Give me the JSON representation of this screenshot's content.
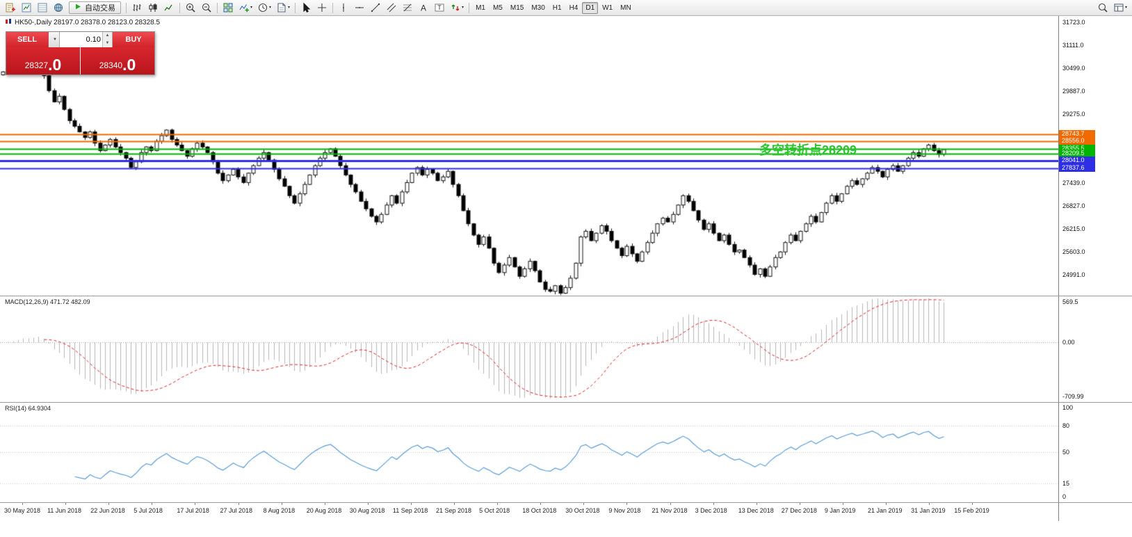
{
  "toolbar": {
    "autotrading_label": "自动交易",
    "timeframes": [
      "M1",
      "M5",
      "M15",
      "M30",
      "H1",
      "H4",
      "D1",
      "W1",
      "MN"
    ],
    "selected_timeframe": "D1",
    "groups": [
      {
        "type": "icons",
        "items": [
          "new-order-icon",
          "market-watch-icon",
          "data-window-icon",
          "navigator-icon"
        ]
      },
      {
        "type": "autotrading"
      },
      {
        "type": "sep"
      },
      {
        "type": "icons",
        "items": [
          "bar-chart-icon",
          "candlestick-icon",
          "line-chart-icon"
        ]
      },
      {
        "type": "sep"
      },
      {
        "type": "icons",
        "items": [
          "zoom-in-icon",
          "zoom-out-icon"
        ]
      },
      {
        "type": "sep"
      },
      {
        "type": "icons",
        "items": [
          "tile-windows-icon"
        ]
      },
      {
        "type": "icons-caret",
        "items": [
          "indicators-icon",
          "periods-icon",
          "templates-icon"
        ]
      },
      {
        "type": "sep"
      },
      {
        "type": "icons",
        "items": [
          "cursor-icon",
          "crosshair-icon"
        ]
      },
      {
        "type": "sep"
      },
      {
        "type": "icons",
        "items": [
          "vertical-line-icon",
          "horizontal-line-icon",
          "trendline-icon",
          "channel-icon",
          "fibonacci-icon",
          "text-icon",
          "label-icon"
        ]
      },
      {
        "type": "icons-caret",
        "items": [
          "arrows-icon"
        ]
      },
      {
        "type": "sep"
      },
      {
        "type": "timeframes"
      },
      {
        "type": "spacer"
      },
      {
        "type": "icons",
        "items": [
          "search-icon"
        ]
      },
      {
        "type": "icons-caret",
        "items": [
          "panels-icon"
        ]
      }
    ]
  },
  "chart": {
    "title_line": "HK50-,Daily 28197.0 28378.0 28123.0 28328.5",
    "annotation": {
      "text": "多空转折点28209",
      "color": "#2dc42d"
    },
    "levels": [
      {
        "price": 28743.7,
        "label": "28743.7",
        "color": "#f06a00",
        "width": 2
      },
      {
        "price": 28556.0,
        "label": "28556.0",
        "color": "#f06a00",
        "width": 2
      },
      {
        "price": 28355.5,
        "label": "28355.5",
        "color": "#00b400",
        "width": 2
      },
      {
        "price": 28209.5,
        "label": "28209.5",
        "color": "#00b400",
        "width": 2
      },
      {
        "price": 28041.0,
        "label": "28041.0",
        "color": "#2e2ee6",
        "width": 3
      },
      {
        "price": 27837.6,
        "label": "27837.6",
        "color": "#2e2ee6",
        "width": 2
      }
    ],
    "axis_ticks": [
      31723.0,
      31111.0,
      30499.0,
      29887.0,
      29275.0,
      27439.0,
      26827.0,
      26215.0,
      25603.0,
      24991.0
    ]
  },
  "trade": {
    "sell_label": "SELL",
    "buy_label": "BUY",
    "volume": "0.10",
    "sell_price": "28327.0",
    "buy_price": "28340.0"
  },
  "macd": {
    "label": "MACD(12,26,9) 471.72 482.09",
    "axis_labels": [
      "569.5",
      "0.00",
      "-709.99"
    ]
  },
  "rsi": {
    "label": "RSI(14) 64.9304",
    "axis_labels": [
      "100",
      "80",
      "50",
      "15",
      "0"
    ],
    "axis_values": [
      100,
      80,
      50,
      15,
      0
    ],
    "levels": [
      80,
      50,
      15
    ]
  },
  "dates": [
    "30 May 2018",
    "11 Jun 2018",
    "22 Jun 2018",
    "5 Jul 2018",
    "17 Jul 2018",
    "27 Jul 2018",
    "8 Aug 2018",
    "20 Aug 2018",
    "30 Aug 2018",
    "11 Sep 2018",
    "21 Sep 2018",
    "5 Oct 2018",
    "18 Oct 2018",
    "30 Oct 2018",
    "9 Nov 2018",
    "21 Nov 2018",
    "3 Dec 2018",
    "13 Dec 2018",
    "27 Dec 2018",
    "9 Jan 2019",
    "21 Jan 2019",
    "31 Jan 2019",
    "15 Feb 2019"
  ],
  "colors": {
    "candle_up": "#ffffff",
    "candle_down": "#000000",
    "candle_border": "#111111",
    "macd_histogram": "#b4b4b4",
    "macd_signal": "#e02020",
    "rsi_line": "#5b9bd5",
    "panel_red": "#d2232a"
  },
  "chart_data": {
    "type": "candlestick",
    "symbol": "HK50",
    "timeframe": "Daily",
    "last_ohlc": {
      "open": 28197.0,
      "high": 28378.0,
      "low": 28123.0,
      "close": 28328.5
    },
    "bid": 28327.0,
    "ask": 28340.0,
    "y_range": [
      24435,
      31890
    ],
    "closes": [
      30400,
      30480,
      30520,
      30600,
      30680,
      30560,
      30640,
      30720,
      30300,
      29900,
      29600,
      29750,
      29400,
      29100,
      28950,
      28800,
      28650,
      28800,
      28500,
      28300,
      28450,
      28600,
      28400,
      28250,
      28100,
      27850,
      28000,
      28250,
      28400,
      28300,
      28550,
      28700,
      28850,
      28600,
      28450,
      28300,
      28150,
      28350,
      28500,
      28400,
      28250,
      28000,
      27700,
      27500,
      27650,
      27800,
      27600,
      27450,
      27700,
      27900,
      28100,
      28250,
      28050,
      27800,
      27550,
      27350,
      27100,
      26900,
      27150,
      27400,
      27650,
      27900,
      28100,
      28250,
      28350,
      28150,
      27900,
      27650,
      27400,
      27200,
      26950,
      26750,
      26550,
      26400,
      26600,
      26850,
      27100,
      26900,
      27200,
      27450,
      27700,
      27850,
      27650,
      27800,
      27700,
      27500,
      27600,
      27750,
      27400,
      27100,
      26700,
      26350,
      26050,
      25800,
      26000,
      25700,
      25300,
      25050,
      25250,
      25450,
      25200,
      24950,
      25150,
      25350,
      25100,
      24800,
      24600,
      24550,
      24700,
      24500,
      24650,
      24900,
      25300,
      26000,
      26150,
      25900,
      26100,
      26300,
      26150,
      25900,
      25700,
      25500,
      25750,
      25550,
      25350,
      25600,
      25850,
      26100,
      26350,
      26500,
      26400,
      26600,
      26850,
      27100,
      26950,
      26700,
      26450,
      26200,
      26350,
      26100,
      25900,
      26050,
      25800,
      25600,
      25650,
      25450,
      25250,
      25000,
      25150,
      24950,
      25200,
      25450,
      25600,
      25850,
      26050,
      25900,
      26150,
      26350,
      26550,
      26400,
      26650,
      26900,
      27100,
      26950,
      27150,
      27350,
      27500,
      27400,
      27550,
      27700,
      27850,
      27750,
      27600,
      27800,
      27900,
      27750,
      27900,
      28100,
      28250,
      28150,
      28350,
      28450,
      28300,
      28200,
      28328.5
    ],
    "indicators": [
      {
        "type": "MACD",
        "params": [
          12,
          26,
          9
        ],
        "current_values": [
          471.72,
          482.09
        ]
      },
      {
        "type": "RSI",
        "params": [
          14
        ],
        "current_value": 64.9304
      }
    ]
  }
}
